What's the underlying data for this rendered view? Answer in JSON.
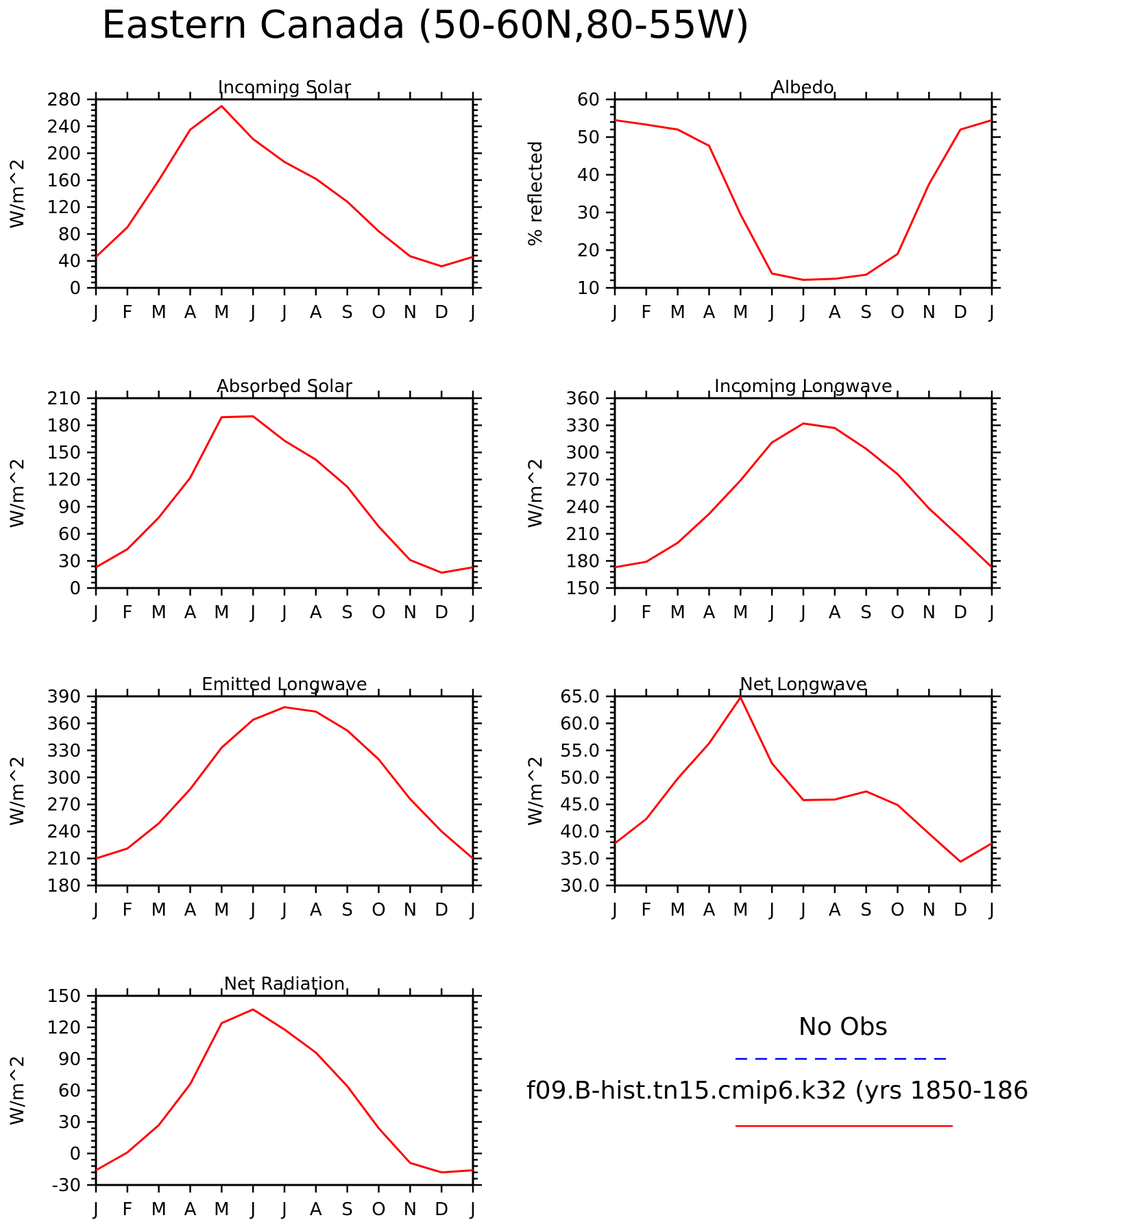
{
  "figure": {
    "title": "Eastern Canada (50-60N,80-55W)"
  },
  "legend": {
    "entries": [
      {
        "label": "No Obs",
        "color": "#0000ff",
        "style": "dashed"
      },
      {
        "label": "f09.B-hist.tn15.cmip6.k32 (yrs 1850-186",
        "color": "#ff0000",
        "style": "solid"
      }
    ]
  },
  "chart_data": [
    {
      "type": "line",
      "title": "Incoming Solar",
      "xlabel": "",
      "ylabel": "W/m^2",
      "categories": [
        "J",
        "F",
        "M",
        "A",
        "M",
        "J",
        "J",
        "A",
        "S",
        "O",
        "N",
        "D",
        "J"
      ],
      "ylim": [
        0,
        280
      ],
      "yticks": [
        "0",
        "40",
        "80",
        "120",
        "160",
        "200",
        "240",
        "280"
      ],
      "series": [
        {
          "color": "#ff0000",
          "values": [
            46,
            90,
            160,
            235,
            270,
            221,
            187,
            162,
            128,
            84,
            47,
            32,
            46
          ]
        }
      ],
      "grid": false
    },
    {
      "type": "line",
      "title": "Albedo",
      "xlabel": "",
      "ylabel": "% reflected",
      "categories": [
        "J",
        "F",
        "M",
        "A",
        "M",
        "J",
        "J",
        "A",
        "S",
        "O",
        "N",
        "D",
        "J"
      ],
      "ylim": [
        10,
        60
      ],
      "yticks": [
        "10",
        "20",
        "30",
        "40",
        "50",
        "60"
      ],
      "series": [
        {
          "color": "#ff0000",
          "values": [
            54.5,
            53.3,
            52.0,
            47.7,
            29.5,
            13.8,
            12.1,
            12.4,
            13.5,
            19.0,
            37.5,
            52.0,
            54.5
          ]
        }
      ],
      "grid": false
    },
    {
      "type": "line",
      "title": "Absorbed Solar",
      "xlabel": "",
      "ylabel": "W/m^2",
      "categories": [
        "J",
        "F",
        "M",
        "A",
        "M",
        "J",
        "J",
        "A",
        "S",
        "O",
        "N",
        "D",
        "J"
      ],
      "ylim": [
        0,
        210
      ],
      "yticks": [
        "0",
        "30",
        "60",
        "90",
        "120",
        "150",
        "180",
        "210"
      ],
      "series": [
        {
          "color": "#ff0000",
          "values": [
            23,
            43,
            78,
            122,
            189,
            190,
            163,
            142,
            112,
            68,
            31,
            17,
            23
          ]
        }
      ],
      "grid": false
    },
    {
      "type": "line",
      "title": "Incoming Longwave",
      "xlabel": "",
      "ylabel": "W/m^2",
      "categories": [
        "J",
        "F",
        "M",
        "A",
        "M",
        "J",
        "J",
        "A",
        "S",
        "O",
        "N",
        "D",
        "J"
      ],
      "ylim": [
        150,
        360
      ],
      "yticks": [
        "150",
        "180",
        "210",
        "240",
        "270",
        "300",
        "330",
        "360"
      ],
      "series": [
        {
          "color": "#ff0000",
          "values": [
            173,
            179,
            200,
            232,
            269,
            311,
            332,
            327,
            304,
            276,
            238,
            206,
            173
          ]
        }
      ],
      "grid": false
    },
    {
      "type": "line",
      "title": "Emitted Longwave",
      "xlabel": "",
      "ylabel": "W/m^2",
      "categories": [
        "J",
        "F",
        "M",
        "A",
        "M",
        "J",
        "J",
        "A",
        "S",
        "O",
        "N",
        "D",
        "J"
      ],
      "ylim": [
        180,
        390
      ],
      "yticks": [
        "180",
        "210",
        "240",
        "270",
        "300",
        "330",
        "360",
        "390"
      ],
      "series": [
        {
          "color": "#ff0000",
          "values": [
            210,
            221,
            249,
            287,
            333,
            364,
            378,
            373,
            352,
            320,
            276,
            240,
            210
          ]
        }
      ],
      "grid": false
    },
    {
      "type": "line",
      "title": "Net Longwave",
      "xlabel": "",
      "ylabel": "W/m^2",
      "categories": [
        "J",
        "F",
        "M",
        "A",
        "M",
        "J",
        "J",
        "A",
        "S",
        "O",
        "N",
        "D",
        "J"
      ],
      "ylim": [
        30,
        65
      ],
      "yticks": [
        "30.0",
        "35.0",
        "40.0",
        "45.0",
        "50.0",
        "55.0",
        "60.0",
        "65.0"
      ],
      "series": [
        {
          "color": "#ff0000",
          "values": [
            37.8,
            42.3,
            49.8,
            56.3,
            64.8,
            52.6,
            45.8,
            45.9,
            47.4,
            44.9,
            39.6,
            34.4,
            37.8
          ]
        }
      ],
      "grid": false
    },
    {
      "type": "line",
      "title": "Net Radiation",
      "xlabel": "",
      "ylabel": "W/m^2",
      "categories": [
        "J",
        "F",
        "M",
        "A",
        "M",
        "J",
        "J",
        "A",
        "S",
        "O",
        "N",
        "D",
        "J"
      ],
      "ylim": [
        -30,
        150
      ],
      "yticks": [
        "-30",
        "0",
        "30",
        "60",
        "90",
        "120",
        "150"
      ],
      "series": [
        {
          "color": "#ff0000",
          "values": [
            -16,
            1,
            27,
            66,
            124,
            137,
            118,
            96,
            64,
            24,
            -9,
            -18,
            -16
          ]
        }
      ],
      "grid": false
    }
  ]
}
